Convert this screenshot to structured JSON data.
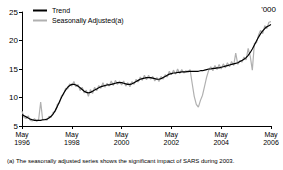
{
  "chart_data": {
    "type": "line",
    "ylabel": "'000",
    "footnote": "(a) The seasonally adjusted series shows the significant impact of SARS during 2003.",
    "categories": [
      "May 1996",
      null,
      null,
      null,
      null,
      null,
      null,
      null,
      null,
      null,
      null,
      null,
      null,
      null,
      null,
      null,
      null,
      null,
      null,
      null,
      null,
      null,
      null,
      null,
      "May 1998",
      null,
      null,
      null,
      null,
      null,
      null,
      null,
      null,
      null,
      null,
      null,
      null,
      null,
      null,
      null,
      null,
      null,
      null,
      null,
      null,
      null,
      null,
      null,
      "May 2000",
      null,
      null,
      null,
      null,
      null,
      null,
      null,
      null,
      null,
      null,
      null,
      null,
      null,
      null,
      null,
      null,
      null,
      null,
      null,
      null,
      null,
      null,
      null,
      "May 2002",
      null,
      null,
      null,
      null,
      null,
      null,
      null,
      null,
      null,
      null,
      null,
      null,
      null,
      null,
      null,
      null,
      null,
      null,
      null,
      null,
      null,
      null,
      null,
      "May 2004",
      null,
      null,
      null,
      null,
      null,
      null,
      null,
      null,
      null,
      null,
      null,
      null,
      null,
      null,
      null,
      null,
      null,
      null,
      null,
      null,
      null,
      null,
      null,
      "May 2006"
    ],
    "series": [
      {
        "name": "Trend",
        "color": "#000000",
        "values": [
          7.0,
          6.8,
          6.6,
          6.4,
          6.2,
          6.1,
          6.0,
          6.0,
          6.0,
          6.0,
          6.1,
          6.1,
          6.2,
          6.4,
          6.7,
          7.1,
          7.7,
          8.4,
          9.2,
          10.0,
          10.7,
          11.3,
          11.8,
          12.1,
          12.3,
          12.3,
          12.2,
          12.0,
          11.7,
          11.4,
          11.1,
          10.9,
          10.8,
          10.9,
          11.1,
          11.3,
          11.5,
          11.7,
          11.9,
          12.0,
          12.1,
          12.2,
          12.2,
          12.3,
          12.4,
          12.5,
          12.6,
          12.6,
          12.6,
          12.5,
          12.4,
          12.3,
          12.3,
          12.4,
          12.6,
          12.8,
          13.0,
          13.2,
          13.3,
          13.4,
          13.5,
          13.5,
          13.5,
          13.4,
          13.3,
          13.2,
          13.2,
          13.3,
          13.5,
          13.7,
          13.9,
          14.1,
          14.2,
          14.3,
          14.3,
          14.4,
          14.4,
          14.5,
          14.5,
          14.5,
          14.6,
          14.6,
          14.6,
          14.6,
          14.6,
          14.6,
          14.7,
          14.7,
          14.8,
          14.9,
          15.0,
          15.0,
          15.1,
          15.1,
          15.2,
          15.2,
          15.3,
          15.4,
          15.5,
          15.6,
          15.7,
          15.8,
          15.9,
          16.0,
          16.1,
          16.3,
          16.5,
          16.7,
          17.0,
          17.4,
          17.9,
          18.5,
          19.2,
          19.9,
          20.6,
          21.2,
          21.7,
          22.1,
          22.4,
          22.6,
          22.8
        ]
      },
      {
        "name": "Seasonally Adjusted(a)",
        "color": "#b0b0b0",
        "values": [
          7.6,
          6.5,
          6.3,
          6.8,
          6.0,
          5.9,
          6.3,
          5.8,
          6.1,
          9.2,
          6.0,
          6.2,
          6.0,
          6.7,
          6.5,
          7.4,
          7.5,
          8.8,
          9.0,
          10.3,
          10.5,
          11.6,
          11.5,
          12.4,
          12.0,
          12.8,
          11.9,
          12.3,
          11.2,
          11.8,
          10.8,
          11.3,
          10.2,
          11.4,
          10.7,
          11.8,
          11.2,
          12.1,
          11.6,
          12.6,
          11.8,
          12.5,
          12.0,
          12.9,
          12.1,
          13.0,
          12.3,
          12.9,
          12.2,
          12.9,
          12.0,
          12.6,
          11.9,
          12.8,
          12.3,
          13.2,
          12.7,
          13.6,
          13.0,
          13.9,
          13.1,
          13.9,
          13.2,
          13.7,
          12.9,
          13.5,
          12.8,
          13.7,
          13.2,
          14.0,
          13.6,
          14.6,
          14.0,
          14.8,
          14.1,
          15.0,
          14.2,
          14.9,
          14.3,
          14.7,
          14.4,
          14.9,
          12.5,
          10.2,
          8.8,
          8.3,
          9.5,
          10.4,
          12.0,
          13.6,
          14.8,
          15.4,
          14.7,
          15.6,
          14.9,
          15.8,
          15.0,
          15.9,
          15.2,
          16.1,
          15.4,
          16.3,
          15.6,
          17.8,
          15.8,
          16.5,
          16.2,
          17.1,
          16.6,
          18.6,
          17.2,
          14.8,
          19.5,
          19.6,
          21.0,
          21.8,
          21.2,
          22.6,
          22.1,
          23.2,
          23.3
        ]
      }
    ],
    "ylim": [
      5,
      25
    ],
    "yticks": [
      5,
      10,
      15,
      20,
      25
    ],
    "grid": false,
    "legend": "top-left"
  }
}
